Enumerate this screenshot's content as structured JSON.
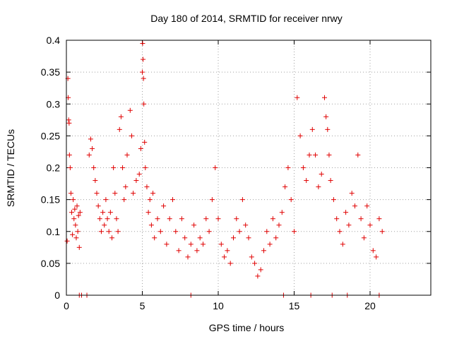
{
  "chart_data": {
    "type": "scatter",
    "title": "Day 180 of 2014, SRMTID for receiver nrwy",
    "xlabel": "GPS time / hours",
    "ylabel": "SRMTID / TECUs",
    "xlim": [
      0,
      24
    ],
    "ylim": [
      0,
      0.4
    ],
    "xticks": [
      0,
      5,
      10,
      15,
      20
    ],
    "yticks": [
      0,
      0.05,
      0.1,
      0.15,
      0.2,
      0.25,
      0.3,
      0.35,
      0.4
    ],
    "grid": true,
    "marker": "+",
    "series": [
      {
        "name": "SRMTID",
        "color": "#e00000",
        "points": [
          [
            0.05,
            0.085
          ],
          [
            0.1,
            0.34
          ],
          [
            0.12,
            0.31
          ],
          [
            0.15,
            0.275
          ],
          [
            0.18,
            0.27
          ],
          [
            0.2,
            0.22
          ],
          [
            0.25,
            0.2
          ],
          [
            0.3,
            0.16
          ],
          [
            0.35,
            0.13
          ],
          [
            0.4,
            0.095
          ],
          [
            0.45,
            0.15
          ],
          [
            0.5,
            0.12
          ],
          [
            0.55,
            0.135
          ],
          [
            0.6,
            0.11
          ],
          [
            0.65,
            0.09
          ],
          [
            0.7,
            0.14
          ],
          [
            0.75,
            0.1
          ],
          [
            0.8,
            0.125
          ],
          [
            0.85,
            0.075
          ],
          [
            0.9,
            0.13
          ],
          [
            1.5,
            0.22
          ],
          [
            1.6,
            0.245
          ],
          [
            1.7,
            0.23
          ],
          [
            1.8,
            0.2
          ],
          [
            1.9,
            0.18
          ],
          [
            2.0,
            0.16
          ],
          [
            2.1,
            0.14
          ],
          [
            2.2,
            0.12
          ],
          [
            2.3,
            0.1
          ],
          [
            2.4,
            0.13
          ],
          [
            2.5,
            0.11
          ],
          [
            2.6,
            0.15
          ],
          [
            2.7,
            0.12
          ],
          [
            2.8,
            0.1
          ],
          [
            2.9,
            0.13
          ],
          [
            3.0,
            0.09
          ],
          [
            3.1,
            0.2
          ],
          [
            3.2,
            0.16
          ],
          [
            3.3,
            0.12
          ],
          [
            3.4,
            0.1
          ],
          [
            3.5,
            0.26
          ],
          [
            3.6,
            0.28
          ],
          [
            3.7,
            0.2
          ],
          [
            3.8,
            0.15
          ],
          [
            3.9,
            0.17
          ],
          [
            4.0,
            0.22
          ],
          [
            4.2,
            0.29
          ],
          [
            4.3,
            0.25
          ],
          [
            4.4,
            0.16
          ],
          [
            4.6,
            0.18
          ],
          [
            4.8,
            0.19
          ],
          [
            4.9,
            0.23
          ],
          [
            5.0,
            0.35
          ],
          [
            5.02,
            0.395
          ],
          [
            5.05,
            0.37
          ],
          [
            5.08,
            0.34
          ],
          [
            5.1,
            0.3
          ],
          [
            5.15,
            0.24
          ],
          [
            5.2,
            0.2
          ],
          [
            5.3,
            0.17
          ],
          [
            5.4,
            0.13
          ],
          [
            5.5,
            0.15
          ],
          [
            5.6,
            0.11
          ],
          [
            5.7,
            0.16
          ],
          [
            5.8,
            0.09
          ],
          [
            6.0,
            0.12
          ],
          [
            6.2,
            0.1
          ],
          [
            6.4,
            0.14
          ],
          [
            6.6,
            0.08
          ],
          [
            6.8,
            0.12
          ],
          [
            7.0,
            0.15
          ],
          [
            7.2,
            0.1
          ],
          [
            7.4,
            0.07
          ],
          [
            7.6,
            0.12
          ],
          [
            7.8,
            0.09
          ],
          [
            8.0,
            0.06
          ],
          [
            8.2,
            0.08
          ],
          [
            8.4,
            0.11
          ],
          [
            8.6,
            0.07
          ],
          [
            8.8,
            0.09
          ],
          [
            9.0,
            0.08
          ],
          [
            9.2,
            0.12
          ],
          [
            9.4,
            0.1
          ],
          [
            9.6,
            0.15
          ],
          [
            9.8,
            0.2
          ],
          [
            10.0,
            0.12
          ],
          [
            10.2,
            0.08
          ],
          [
            10.4,
            0.06
          ],
          [
            10.6,
            0.07
          ],
          [
            10.8,
            0.05
          ],
          [
            11.0,
            0.09
          ],
          [
            11.2,
            0.12
          ],
          [
            11.4,
            0.1
          ],
          [
            11.6,
            0.15
          ],
          [
            11.8,
            0.11
          ],
          [
            12.0,
            0.09
          ],
          [
            12.2,
            0.06
          ],
          [
            12.4,
            0.05
          ],
          [
            12.6,
            0.03
          ],
          [
            12.8,
            0.04
          ],
          [
            13.0,
            0.07
          ],
          [
            13.2,
            0.1
          ],
          [
            13.4,
            0.08
          ],
          [
            13.6,
            0.12
          ],
          [
            13.8,
            0.09
          ],
          [
            14.0,
            0.11
          ],
          [
            14.2,
            0.13
          ],
          [
            14.4,
            0.17
          ],
          [
            14.6,
            0.2
          ],
          [
            14.8,
            0.15
          ],
          [
            15.0,
            0.1
          ],
          [
            15.2,
            0.31
          ],
          [
            15.4,
            0.25
          ],
          [
            15.6,
            0.2
          ],
          [
            15.8,
            0.18
          ],
          [
            16.0,
            0.22
          ],
          [
            16.2,
            0.26
          ],
          [
            16.4,
            0.22
          ],
          [
            16.6,
            0.17
          ],
          [
            16.8,
            0.19
          ],
          [
            17.0,
            0.31
          ],
          [
            17.1,
            0.28
          ],
          [
            17.2,
            0.26
          ],
          [
            17.3,
            0.22
          ],
          [
            17.4,
            0.18
          ],
          [
            17.6,
            0.15
          ],
          [
            17.8,
            0.12
          ],
          [
            18.0,
            0.1
          ],
          [
            18.2,
            0.08
          ],
          [
            18.4,
            0.13
          ],
          [
            18.6,
            0.11
          ],
          [
            18.8,
            0.16
          ],
          [
            19.0,
            0.14
          ],
          [
            19.2,
            0.22
          ],
          [
            19.4,
            0.12
          ],
          [
            19.6,
            0.09
          ],
          [
            19.8,
            0.14
          ],
          [
            20.0,
            0.11
          ],
          [
            20.2,
            0.07
          ],
          [
            20.4,
            0.06
          ],
          [
            20.6,
            0.12
          ],
          [
            20.8,
            0.1
          ],
          [
            0.85,
            0
          ],
          [
            1.0,
            0
          ],
          [
            1.35,
            0
          ],
          [
            8.2,
            0
          ],
          [
            14.3,
            0
          ],
          [
            16.1,
            0
          ],
          [
            17.5,
            0
          ],
          [
            18.5,
            0
          ],
          [
            20.6,
            0
          ]
        ]
      }
    ]
  }
}
